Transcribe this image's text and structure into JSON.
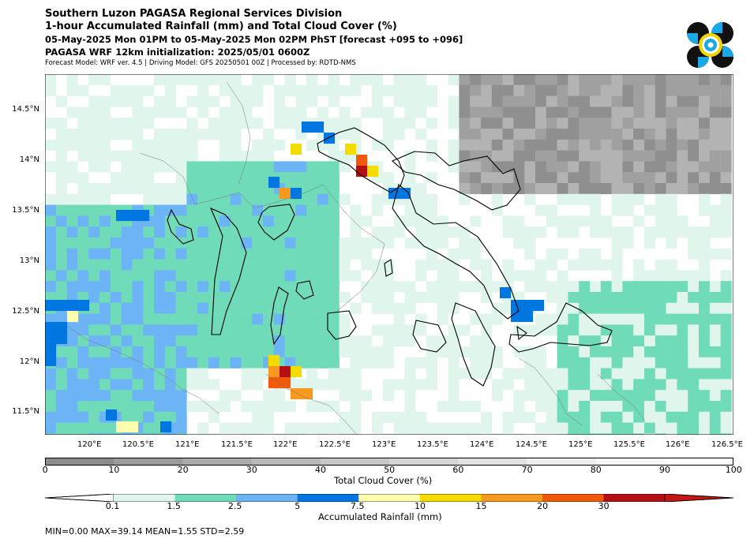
{
  "header": {
    "title_line1": "Southern Luzon PAGASA Regional Services Division",
    "title_line2": "1-hour Accumulated Rainfall (mm) and Total Cloud Cover (%)",
    "period": "05-May-2025 Mon 01PM to 05-May-2025 Mon 02PM PhST [forecast +095 to +096]",
    "initialization": "PAGASA WRF 12km initialization: 2025/05/01 0600Z",
    "model_info": "Forecast Model: WRF ver. 4.5 | Driving Model: GFS 20250501 00Z | Processed by: RDTD-NMS"
  },
  "map": {
    "lat_labels": [
      "14.5°N",
      "14°N",
      "13.5°N",
      "13°N",
      "12.5°N",
      "12°N",
      "11.5°N"
    ],
    "lon_labels": [
      "120°E",
      "120.5°E",
      "121°E",
      "121.5°E",
      "122°E",
      "122.5°E",
      "123°E",
      "123.5°E",
      "124°E",
      "124.5°E",
      "125°E",
      "125.5°E",
      "126°E",
      "126.5°E"
    ]
  },
  "cloud_colorbar": {
    "label": "Total Cloud Cover (%)",
    "ticks": [
      "0",
      "10",
      "20",
      "30",
      "40",
      "50",
      "60",
      "70",
      "80",
      "90",
      "100"
    ],
    "colors": [
      "#8c8c8c",
      "#9b9b9b",
      "#aaaaaa",
      "#b9b9b9",
      "#c7c7c7",
      "#d5d5d5",
      "#e2e2e2",
      "#eeeeee",
      "#f7f7f7",
      "#ffffff"
    ]
  },
  "rain_colorbar": {
    "label": "Accumulated Rainfall (mm)",
    "ticks": [
      "0.1",
      "1.5",
      "2.5",
      "5",
      "7.5",
      "10",
      "15",
      "20",
      "30"
    ],
    "colors": [
      "#e0f5ec",
      "#70dbb8",
      "#6cb4f5",
      "#0077e0",
      "#ffffb0",
      "#f5dc00",
      "#f59a1e",
      "#f05a0a",
      "#b40f14"
    ]
  },
  "stats": "MIN=0.00   MAX=39.14   MEAN=1.55   STD=2.59"
}
